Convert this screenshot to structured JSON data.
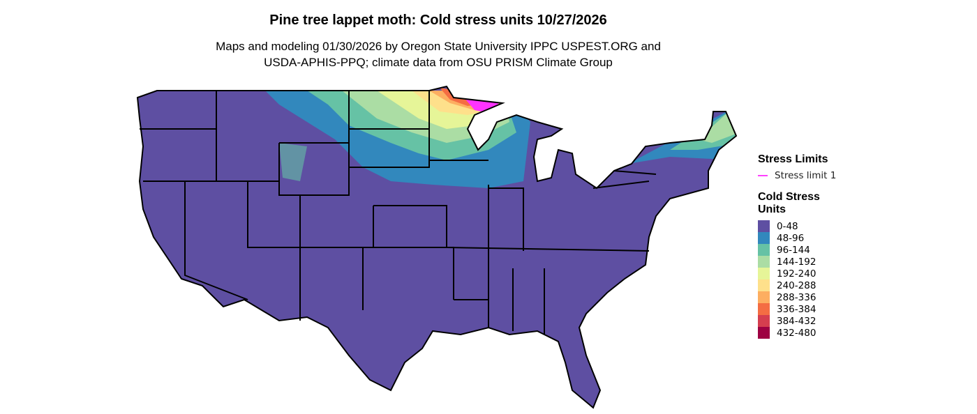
{
  "title": "Pine tree lappet moth: Cold stress units 10/27/2026",
  "subtitle_lines": [
    "Maps and modeling 01/30/2026 by Oregon State University IPPC USPEST.ORG and",
    "USDA-APHIS-PPQ; climate data from OSU PRISM Climate Group"
  ],
  "legend": {
    "stress_title": "Stress Limits",
    "stress_items": [
      {
        "label": "Stress limit 1",
        "color": "#ff40ff"
      }
    ],
    "units_title_lines": [
      "Cold Stress",
      "Units"
    ],
    "bins": [
      {
        "label": "0-48",
        "color": "#5e4fa2"
      },
      {
        "label": "48-96",
        "color": "#3288bd"
      },
      {
        "label": "96-144",
        "color": "#66c2a5"
      },
      {
        "label": "144-192",
        "color": "#abdda4"
      },
      {
        "label": "192-240",
        "color": "#e6f598"
      },
      {
        "label": "240-288",
        "color": "#fee08b"
      },
      {
        "label": "288-336",
        "color": "#fdae61"
      },
      {
        "label": "336-384",
        "color": "#f46d43"
      },
      {
        "label": "384-432",
        "color": "#d53e4f"
      },
      {
        "label": "432-480",
        "color": "#9e0142"
      }
    ]
  }
}
